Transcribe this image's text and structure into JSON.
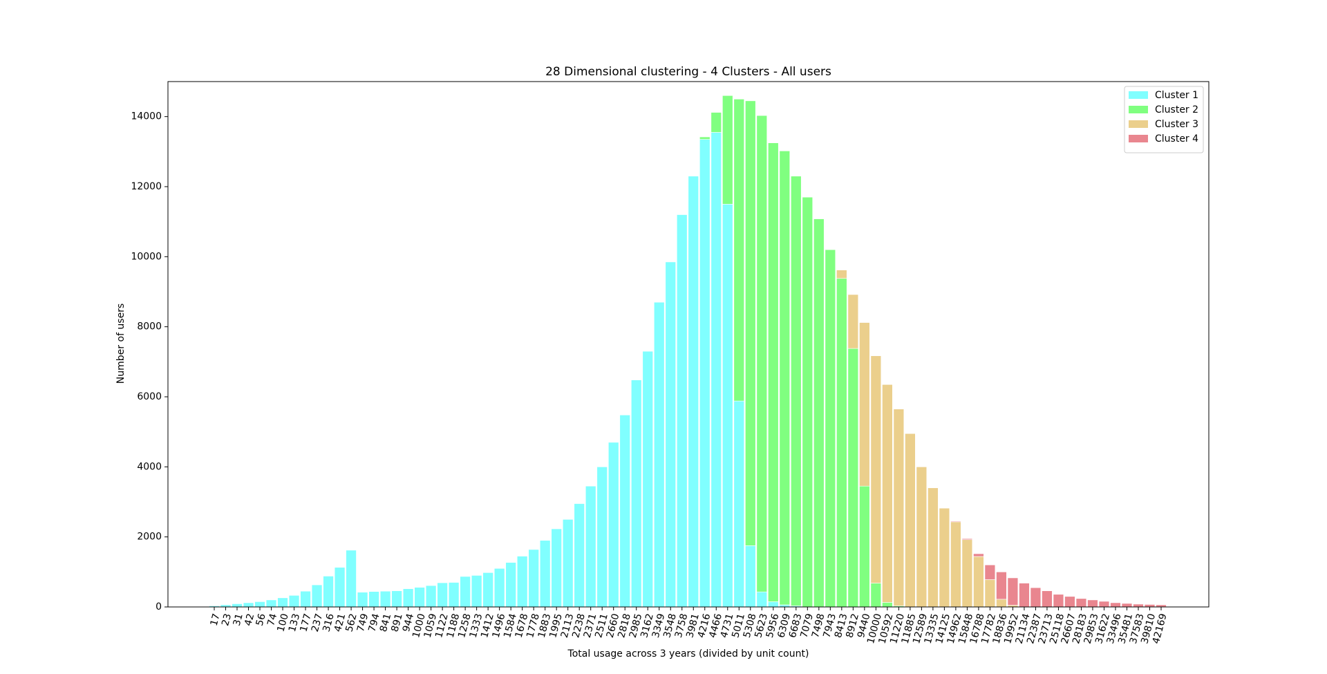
{
  "chart_data": {
    "type": "bar",
    "stacked": true,
    "title": "28 Dimensional clustering - 4 Clusters - All users",
    "x_label": "Total usage across 3 years (divided by unit count)",
    "y_label": "Number of users",
    "categories": [
      "17",
      "23",
      "31",
      "42",
      "56",
      "74",
      "100",
      "133",
      "177",
      "237",
      "316",
      "421",
      "562",
      "749",
      "794",
      "841",
      "891",
      "944",
      "1000",
      "1059",
      "1122",
      "1188",
      "1258",
      "1333",
      "1412",
      "1496",
      "1584",
      "1678",
      "1778",
      "1883",
      "1995",
      "2113",
      "2238",
      "2371",
      "2511",
      "2660",
      "2818",
      "2985",
      "3162",
      "3349",
      "3548",
      "3758",
      "3981",
      "4216",
      "4466",
      "4731",
      "5011",
      "5308",
      "5623",
      "5956",
      "6309",
      "6683",
      "7079",
      "7498",
      "7943",
      "8413",
      "8912",
      "9440",
      "10000",
      "10592",
      "11220",
      "11885",
      "12589",
      "13335",
      "14125",
      "14962",
      "15848",
      "16788",
      "17782",
      "18836",
      "19952",
      "21134",
      "22387",
      "23713",
      "25118",
      "26607",
      "28183",
      "29853",
      "31622",
      "33496",
      "35481",
      "37583",
      "39810",
      "42169"
    ],
    "series": [
      {
        "name": "Cluster 1",
        "color": "#80ffff",
        "values": [
          30,
          60,
          90,
          120,
          150,
          200,
          260,
          330,
          450,
          630,
          880,
          1130,
          1620,
          420,
          440,
          450,
          460,
          520,
          560,
          610,
          690,
          700,
          870,
          900,
          980,
          1100,
          1270,
          1450,
          1640,
          1900,
          2230,
          2500,
          2950,
          3450,
          4000,
          4700,
          5480,
          6480,
          7300,
          8700,
          9850,
          11200,
          12300,
          13350,
          13550,
          11500,
          5880,
          1750,
          430,
          150,
          60,
          30,
          0,
          0,
          0,
          0,
          0,
          0,
          0,
          0,
          0,
          0,
          0,
          0,
          0,
          0,
          0,
          0,
          0,
          0,
          0,
          0,
          0,
          0,
          0,
          0,
          0,
          0,
          0,
          0,
          0,
          0,
          0,
          0
        ]
      },
      {
        "name": "Cluster 2",
        "color": "#80ff80",
        "values": [
          0,
          0,
          0,
          0,
          0,
          0,
          0,
          0,
          0,
          0,
          0,
          0,
          0,
          0,
          0,
          0,
          0,
          0,
          0,
          0,
          0,
          0,
          0,
          0,
          0,
          0,
          0,
          0,
          0,
          0,
          0,
          0,
          0,
          0,
          0,
          0,
          0,
          0,
          0,
          0,
          0,
          0,
          0,
          70,
          570,
          3100,
          8620,
          12700,
          13600,
          13100,
          12960,
          12270,
          11700,
          11080,
          10200,
          9380,
          7380,
          3450,
          680,
          130,
          30,
          0,
          0,
          0,
          0,
          0,
          0,
          0,
          0,
          0,
          0,
          0,
          0,
          0,
          0,
          0,
          0,
          0,
          0,
          0,
          0,
          0,
          0,
          0
        ]
      },
      {
        "name": "Cluster 3",
        "color": "#ebcf8c",
        "values": [
          0,
          0,
          0,
          0,
          0,
          0,
          0,
          0,
          0,
          0,
          0,
          0,
          0,
          0,
          0,
          0,
          0,
          0,
          0,
          0,
          0,
          0,
          0,
          0,
          0,
          0,
          0,
          0,
          0,
          0,
          0,
          0,
          0,
          0,
          0,
          0,
          0,
          0,
          0,
          0,
          0,
          0,
          0,
          0,
          0,
          0,
          0,
          0,
          0,
          0,
          0,
          0,
          0,
          0,
          0,
          240,
          1540,
          4670,
          6490,
          6220,
          5620,
          4950,
          4000,
          3400,
          2820,
          2430,
          1920,
          1440,
          780,
          220,
          50,
          0,
          0,
          0,
          0,
          0,
          0,
          0,
          0,
          0,
          0,
          0,
          0,
          0
        ]
      },
      {
        "name": "Cluster 4",
        "color": "#e9868f",
        "values": [
          0,
          0,
          0,
          0,
          0,
          0,
          0,
          0,
          0,
          0,
          0,
          0,
          0,
          0,
          0,
          0,
          0,
          0,
          0,
          0,
          0,
          0,
          0,
          0,
          0,
          0,
          0,
          0,
          0,
          0,
          0,
          0,
          0,
          0,
          0,
          0,
          0,
          0,
          0,
          0,
          0,
          0,
          0,
          0,
          0,
          0,
          0,
          0,
          0,
          0,
          0,
          0,
          0,
          0,
          0,
          0,
          0,
          0,
          0,
          0,
          0,
          0,
          0,
          0,
          0,
          20,
          30,
          80,
          420,
          780,
          780,
          680,
          550,
          460,
          360,
          300,
          240,
          200,
          160,
          120,
          100,
          80,
          70,
          60
        ]
      }
    ],
    "ylim": [
      0,
      15000
    ],
    "yticks": [
      0,
      2000,
      4000,
      6000,
      8000,
      10000,
      12000,
      14000
    ],
    "legend": "upper right"
  }
}
